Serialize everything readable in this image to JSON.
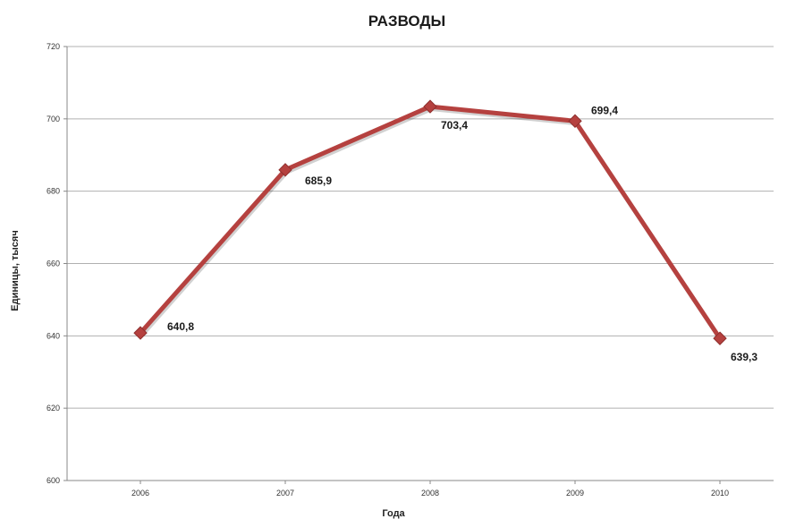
{
  "chart_data": {
    "type": "line",
    "title": "РАЗВОДЫ",
    "xlabel": "Года",
    "ylabel": "Единицы, тысяч",
    "categories": [
      "2006",
      "2007",
      "2008",
      "2009",
      "2010"
    ],
    "series": [
      {
        "values": [
          640.8,
          685.9,
          703.4,
          699.4,
          639.3
        ],
        "data_labels": [
          "640,8",
          "685,9",
          "703,4",
          "699,4",
          "639,3"
        ],
        "color": "#b5413f"
      }
    ],
    "ylim": [
      600,
      720
    ],
    "yticks": [
      600,
      620,
      640,
      660,
      680,
      700,
      720
    ],
    "grid": true,
    "legend": "none"
  }
}
